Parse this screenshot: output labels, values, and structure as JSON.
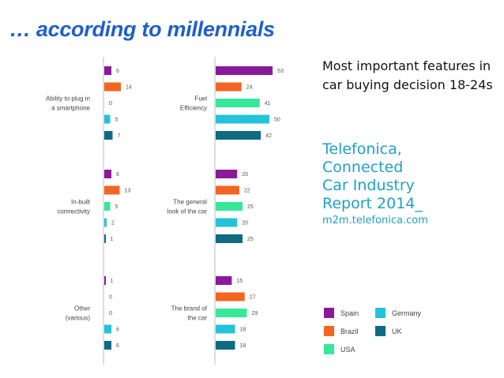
{
  "slide": {
    "title": "… according to millennials",
    "heading": "Most important features in car buying decision 18-24s",
    "source_lines": [
      "Telefonica,",
      "Connected",
      "Car Industry",
      "Report 2014_"
    ],
    "source_url": "m2m.telefonica.com"
  },
  "colors": {
    "Spain": "#8b1a9b",
    "Brazil": "#f26522",
    "USA": "#35e89a",
    "Germany": "#22c3db",
    "UK": "#0e6b82",
    "title": "#1f5fc8",
    "source": "#1fa0c8"
  },
  "chart_data": {
    "type": "bar",
    "orientation": "horizontal",
    "title": "Most important features in car buying decision 18-24s",
    "series_names": [
      "Spain",
      "Brazil",
      "USA",
      "Germany",
      "UK"
    ],
    "legend": {
      "position": "bottom-right",
      "entries": [
        "Spain",
        "Germany",
        "Brazil",
        "UK",
        "USA"
      ]
    },
    "panels": [
      {
        "name": "left",
        "groups": [
          {
            "label": [
              "Ability to plug in",
              "a smartphone"
            ],
            "values": [
              6,
              14,
              0,
              5,
              7
            ]
          },
          {
            "label": [
              "In-built",
              "connectivity"
            ],
            "values": [
              6,
              13,
              5,
              2,
              1
            ]
          },
          {
            "label": [
              "Other",
              "(various)"
            ],
            "values": [
              1,
              0,
              0,
              6,
              6
            ]
          }
        ]
      },
      {
        "name": "right",
        "groups": [
          {
            "label": [
              "Fuel",
              "Efficiency"
            ],
            "values": [
              53,
              24,
              41,
              50,
              42
            ]
          },
          {
            "label": [
              "The general",
              "look of the car"
            ],
            "values": [
              20,
              22,
              25,
              20,
              25
            ]
          },
          {
            "label": [
              "The brand of",
              "the car"
            ],
            "values": [
              15,
              27,
              29,
              18,
              18
            ]
          }
        ]
      }
    ]
  }
}
